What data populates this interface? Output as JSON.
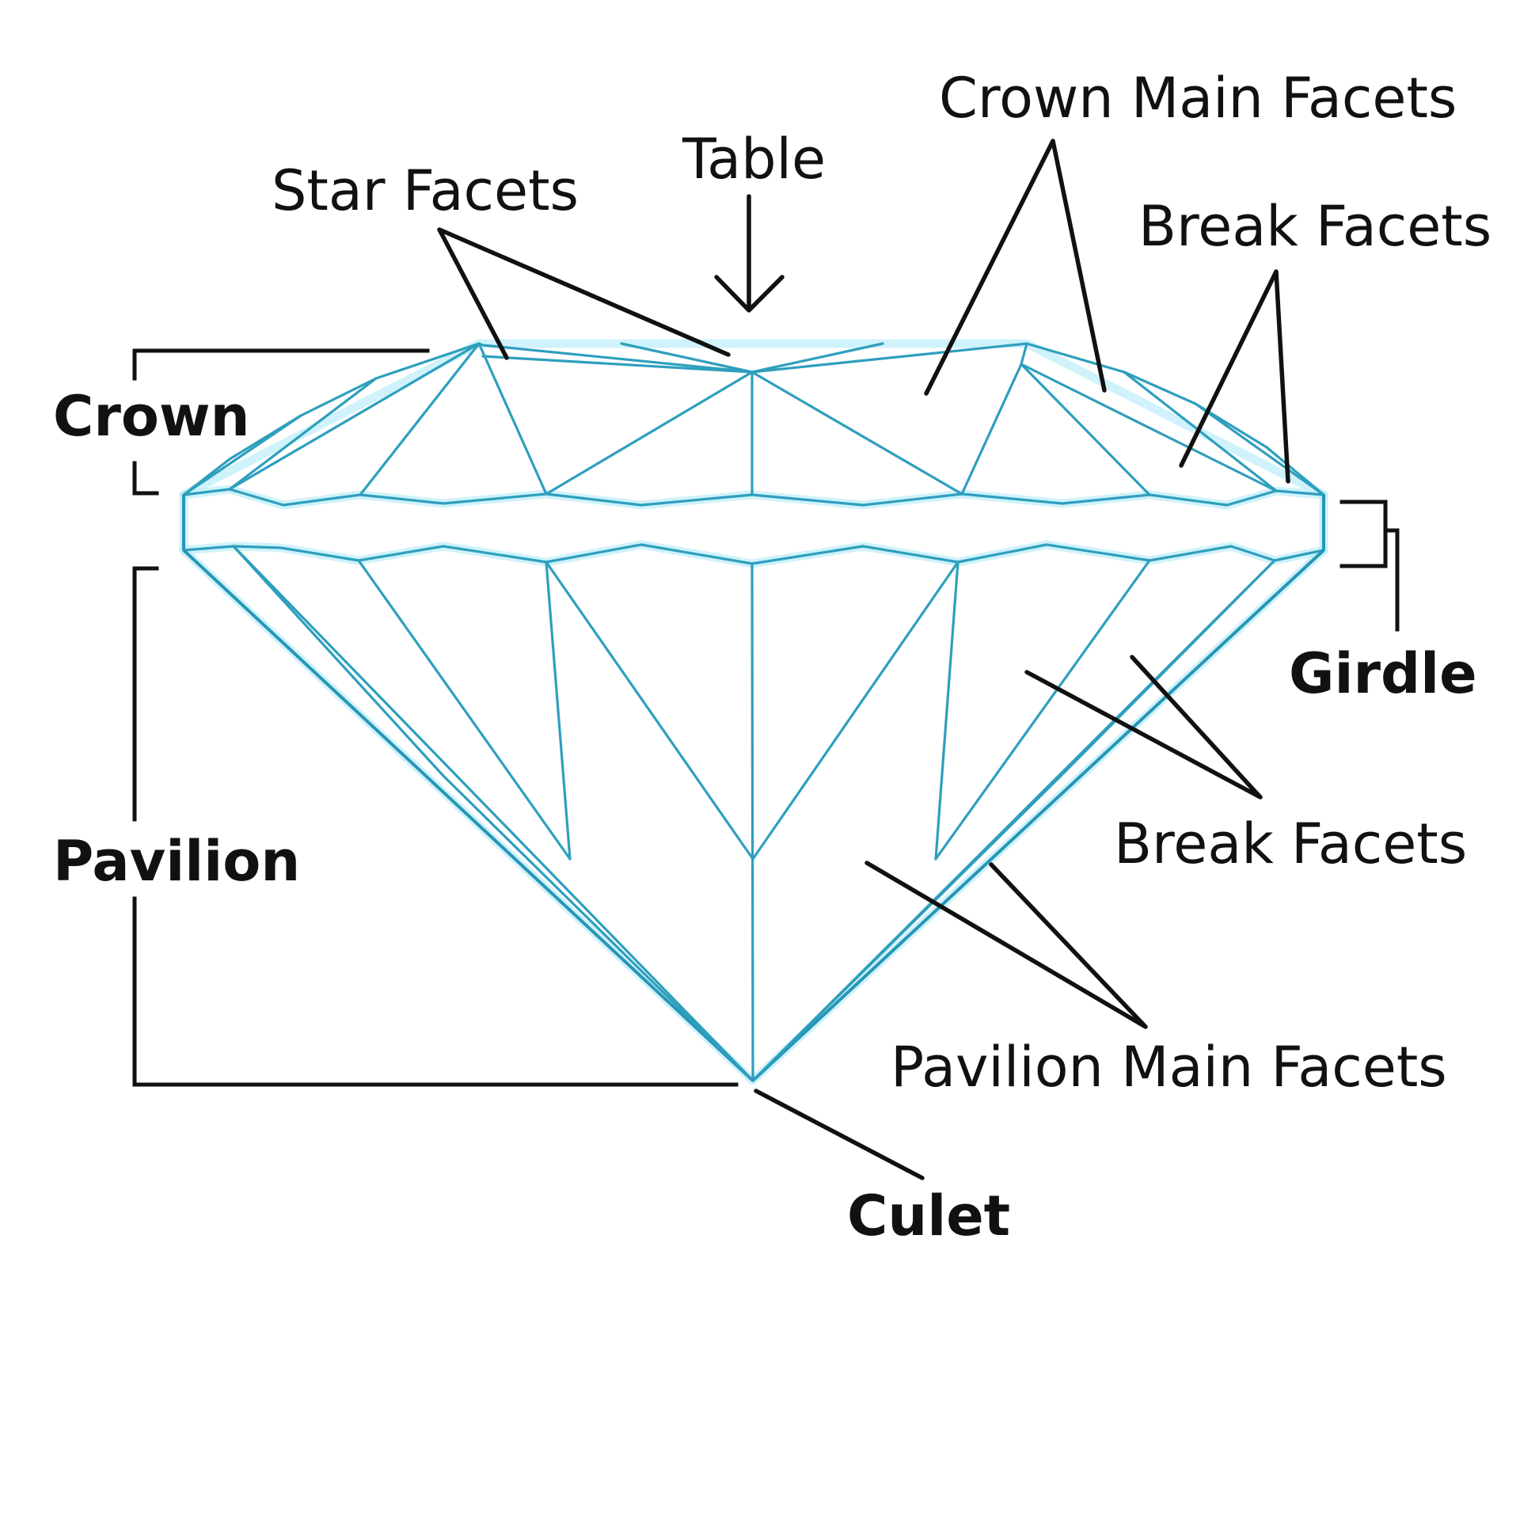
{
  "labels": {
    "star_facets": "Star Facets",
    "table": "Table",
    "crown_main_facets": "Crown Main Facets",
    "break_facets_crown": "Break Facets",
    "crown": "Crown",
    "girdle": "Girdle",
    "pavilion": "Pavilion",
    "break_facets_pavilion": "Break Facets",
    "pavilion_main_facets": "Pavilion Main Facets",
    "culet": "Culet"
  },
  "colors": {
    "facet_lines": "#2e9fbd",
    "facet_glow": "#bfeefa",
    "annotation": "#111111",
    "background": "#ffffff"
  }
}
